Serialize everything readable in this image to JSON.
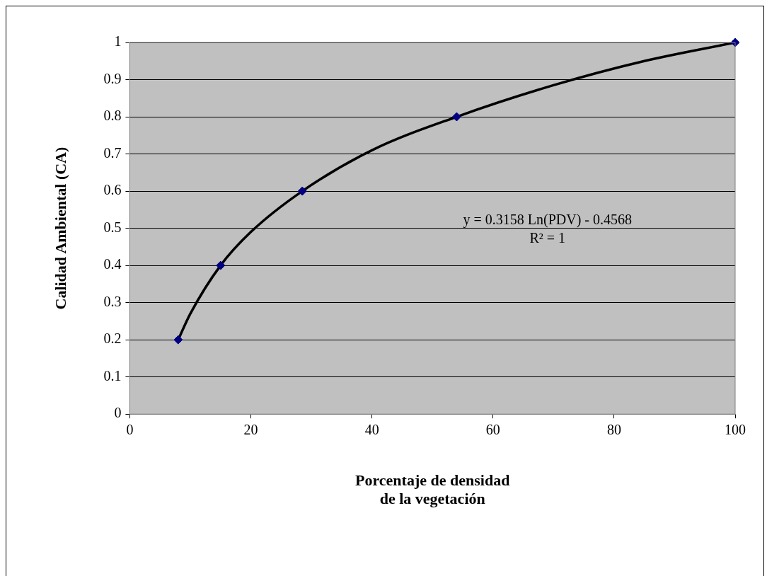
{
  "chart_data": {
    "type": "scatter",
    "xlabel": "Porcentaje de densidad\nde la vegetación",
    "ylabel": "Calidad Ambiental (CA)",
    "annotations": [
      "y = 0.3158 Ln(PDV) - 0.4568\nR² = 1"
    ],
    "series": [
      {
        "color": "#000080",
        "marker": "diamond",
        "x": [
          8,
          15,
          28.5,
          54,
          100
        ],
        "values": [
          0.2,
          0.4,
          0.6,
          0.8,
          1
        ]
      },
      {
        "type": "line",
        "color": "#000000",
        "marker": "none",
        "x": [
          8,
          10,
          15,
          20,
          28.5,
          40,
          54,
          70,
          85,
          100
        ],
        "values": [
          0.2,
          0.27,
          0.4,
          0.49,
          0.6,
          0.71,
          0.8,
          0.885,
          0.95,
          1.0
        ]
      }
    ],
    "xlim": [
      0,
      100
    ],
    "xticks": [
      0,
      20,
      40,
      60,
      80,
      100
    ],
    "ylim": [
      0,
      1
    ],
    "yticks": [
      0,
      0.1,
      0.2,
      0.3,
      0.4,
      0.5,
      0.6,
      0.7,
      0.8,
      0.9,
      1
    ],
    "grid": "y",
    "legend": false
  }
}
